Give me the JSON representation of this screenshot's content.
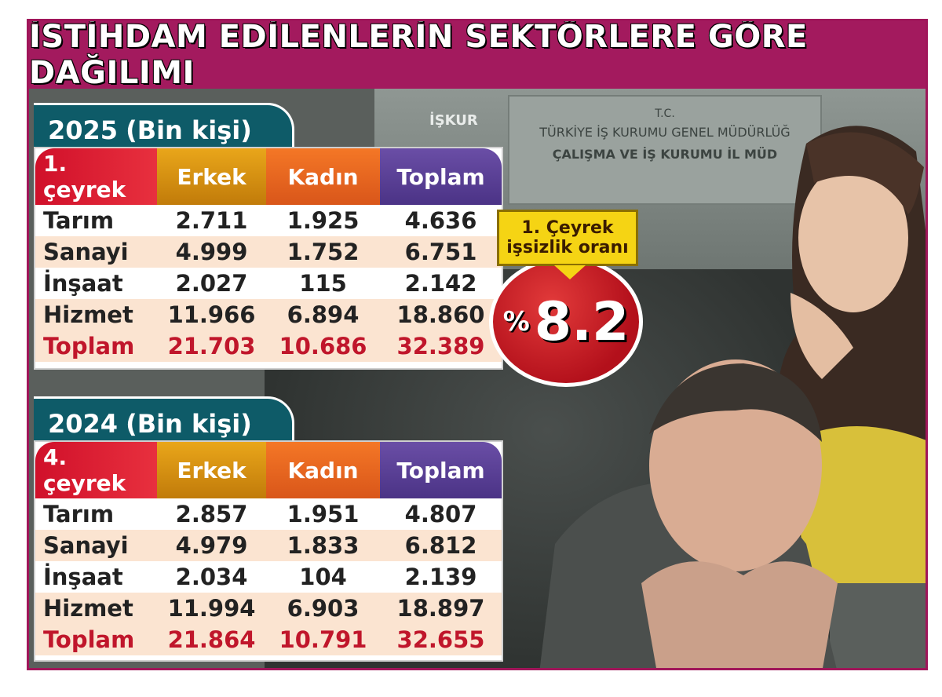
{
  "title": "İSTİHDAM EDİLENLERİN SEKTÖRLERE GÖRE DAĞILIMI",
  "scene": {
    "sign_line1": "T.C.",
    "sign_line2": "TÜRKİYE İŞ KURUMU GENEL MÜDÜRLÜĞ",
    "sign_line3": "ÇALIŞMA VE İŞ KURUMU İL MÜD",
    "logo_text": "İŞKUR"
  },
  "badge": {
    "label_line1": "1. Çeyrek",
    "label_line2": "işsizlik oranı",
    "percent_symbol": "%",
    "value": "8.2"
  },
  "colors": {
    "title_bg": "#a31a5e",
    "year_bg": "#0e5b68",
    "erkek": "#d99414",
    "kadin": "#e86520",
    "toplam": "#5a3f96",
    "first_col": "#d0102a",
    "total_text": "#c0162b",
    "badge_red": "#c8151f",
    "badge_yellow": "#f5d414"
  },
  "chart_data": [
    {
      "type": "table",
      "title": "2025 (Bin kişi)",
      "year": "2025",
      "unit": "(Bin kişi)",
      "columns": [
        "1. çeyrek",
        "Erkek",
        "Kadın",
        "Toplam"
      ],
      "rows": [
        [
          "Tarım",
          "2.711",
          "1.925",
          "4.636"
        ],
        [
          "Sanayi",
          "4.999",
          "1.752",
          "6.751"
        ],
        [
          "İnşaat",
          "2.027",
          "115",
          "2.142"
        ],
        [
          "Hizmet",
          "11.966",
          "6.894",
          "18.860"
        ],
        [
          "Toplam",
          "21.703",
          "10.686",
          "32.389"
        ]
      ]
    },
    {
      "type": "table",
      "title": "2024 (Bin kişi)",
      "year": "2024",
      "unit": "(Bin kişi)",
      "columns": [
        "4. çeyrek",
        "Erkek",
        "Kadın",
        "Toplam"
      ],
      "rows": [
        [
          "Tarım",
          "2.857",
          "1.951",
          "4.807"
        ],
        [
          "Sanayi",
          "4.979",
          "1.833",
          "6.812"
        ],
        [
          "İnşaat",
          "2.034",
          "104",
          "2.139"
        ],
        [
          "Hizmet",
          "11.994",
          "6.903",
          "18.897"
        ],
        [
          "Toplam",
          "21.864",
          "10.791",
          "32.655"
        ]
      ]
    }
  ]
}
